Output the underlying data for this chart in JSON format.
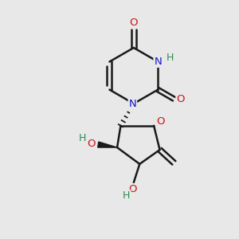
{
  "bg_color": "#e8e8e8",
  "bond_color": "#1a1a1a",
  "N_color": "#1414cc",
  "O_color": "#cc1414",
  "H_color": "#2e8b57",
  "figsize": [
    3.0,
    3.0
  ],
  "dpi": 100,
  "xlim": [
    0,
    10
  ],
  "ylim": [
    0,
    10
  ]
}
